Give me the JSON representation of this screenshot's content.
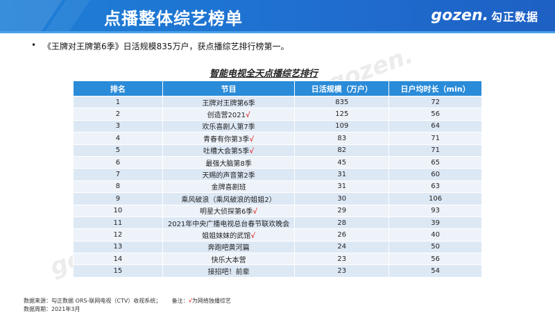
{
  "header": {
    "title": "点播整体综艺榜单",
    "logo_mark": "gozen.",
    "logo_cn": "勾正数据"
  },
  "intro": {
    "bullet": "•",
    "text": "《王牌对王牌第6季》日活规模835万户，获点播综艺排行榜第一。"
  },
  "table": {
    "title": "智能电视全天点播综艺排行",
    "headers": [
      "排名",
      "节目",
      "日活规模（万户）",
      "日户均时长（min）"
    ],
    "rows": [
      {
        "rank": "1",
        "name": "王牌对王牌第6季",
        "mark": "",
        "dau": "835",
        "dur": "72"
      },
      {
        "rank": "2",
        "name": "创造营2021",
        "mark": "√",
        "dau": "125",
        "dur": "56"
      },
      {
        "rank": "3",
        "name": "欢乐喜剧人第7季",
        "mark": "",
        "dau": "109",
        "dur": "64"
      },
      {
        "rank": "4",
        "name": "青春有你第3季",
        "mark": "√",
        "dau": "83",
        "dur": "71"
      },
      {
        "rank": "5",
        "name": "吐槽大会第5季",
        "mark": "√",
        "dau": "82",
        "dur": "71"
      },
      {
        "rank": "6",
        "name": "最强大脑第8季",
        "mark": "",
        "dau": "45",
        "dur": "65"
      },
      {
        "rank": "7",
        "name": "天赐的声音第2季",
        "mark": "",
        "dau": "31",
        "dur": "60"
      },
      {
        "rank": "8",
        "name": "金牌喜剧班",
        "mark": "",
        "dau": "31",
        "dur": "63"
      },
      {
        "rank": "9",
        "name": "乘风破浪（乘风破浪的姐姐2）",
        "mark": "",
        "dau": "30",
        "dur": "106"
      },
      {
        "rank": "10",
        "name": "明星大侦探第6季",
        "mark": "√",
        "dau": "29",
        "dur": "93"
      },
      {
        "rank": "11",
        "name": "2021年中央广播电视总台春节联欢晚会",
        "mark": "",
        "dau": "28",
        "dur": "39"
      },
      {
        "rank": "12",
        "name": "姐姐妹妹的武馆",
        "mark": "√",
        "dau": "26",
        "dur": "40"
      },
      {
        "rank": "13",
        "name": "奔跑吧黄河篇",
        "mark": "",
        "dau": "24",
        "dur": "50"
      },
      {
        "rank": "14",
        "name": "快乐大本营",
        "mark": "",
        "dau": "23",
        "dur": "56"
      },
      {
        "rank": "15",
        "name": "接招吧！前辈",
        "mark": "",
        "dau": "23",
        "dur": "54"
      }
    ]
  },
  "footer": {
    "source_label": "数据来源：勾正数据 ORS-联网电视（CTV）收视系统；",
    "note_label": "备注：",
    "note_mark": "√",
    "note_text": "为网络独播综艺",
    "period": "数据周期：2021年3月"
  },
  "colors": {
    "banner": "#1f6fd0",
    "header_row": "#2a8bd8",
    "row_odd": "#dde8f5",
    "row_even": "#eef3fa",
    "check": "#e23b3b"
  }
}
